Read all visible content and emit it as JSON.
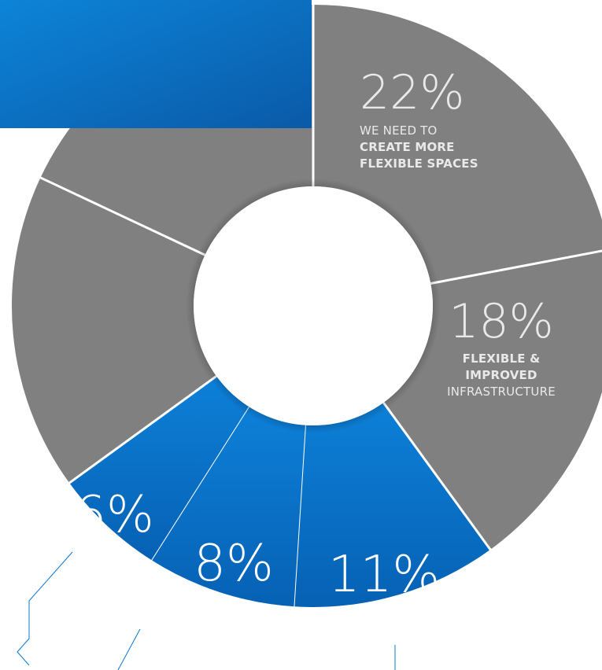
{
  "colors": {
    "grey": "#808080",
    "blue": "#0a78d2",
    "blue_dark": "#0660b3",
    "header_top": "#0d84d8",
    "header_bottom": "#0a5aa8",
    "label_light": "#e9e9e9",
    "white": "#ffffff"
  },
  "chart_data": {
    "type": "pie",
    "slices": [
      {
        "label": "22%",
        "value": 22,
        "color": "grey",
        "text_lines": [
          {
            "text": "WE NEED TO",
            "bold": false
          },
          {
            "text": "CREATE MORE",
            "bold": true
          },
          {
            "text": "FLEXIBLE SPACES",
            "bold": true
          }
        ]
      },
      {
        "label": "18%",
        "value": 18,
        "color": "grey",
        "text_lines": [
          {
            "text": "FLEXIBLE &",
            "bold": true
          },
          {
            "text": "IMPROVED",
            "bold": true
          },
          {
            "text": "INFRASTRUCTURE",
            "bold": false
          }
        ]
      },
      {
        "label": "11%",
        "value": 11,
        "color": "blue",
        "text_lines": []
      },
      {
        "label": "8%",
        "value": 8,
        "color": "blue",
        "text_lines": []
      },
      {
        "label": "6%",
        "value": 6,
        "color": "blue",
        "text_lines": []
      },
      {
        "label": "",
        "value": 17,
        "color": "grey",
        "text_lines": []
      },
      {
        "label": "",
        "value": 18,
        "color": "grey",
        "text_lines": []
      }
    ]
  }
}
